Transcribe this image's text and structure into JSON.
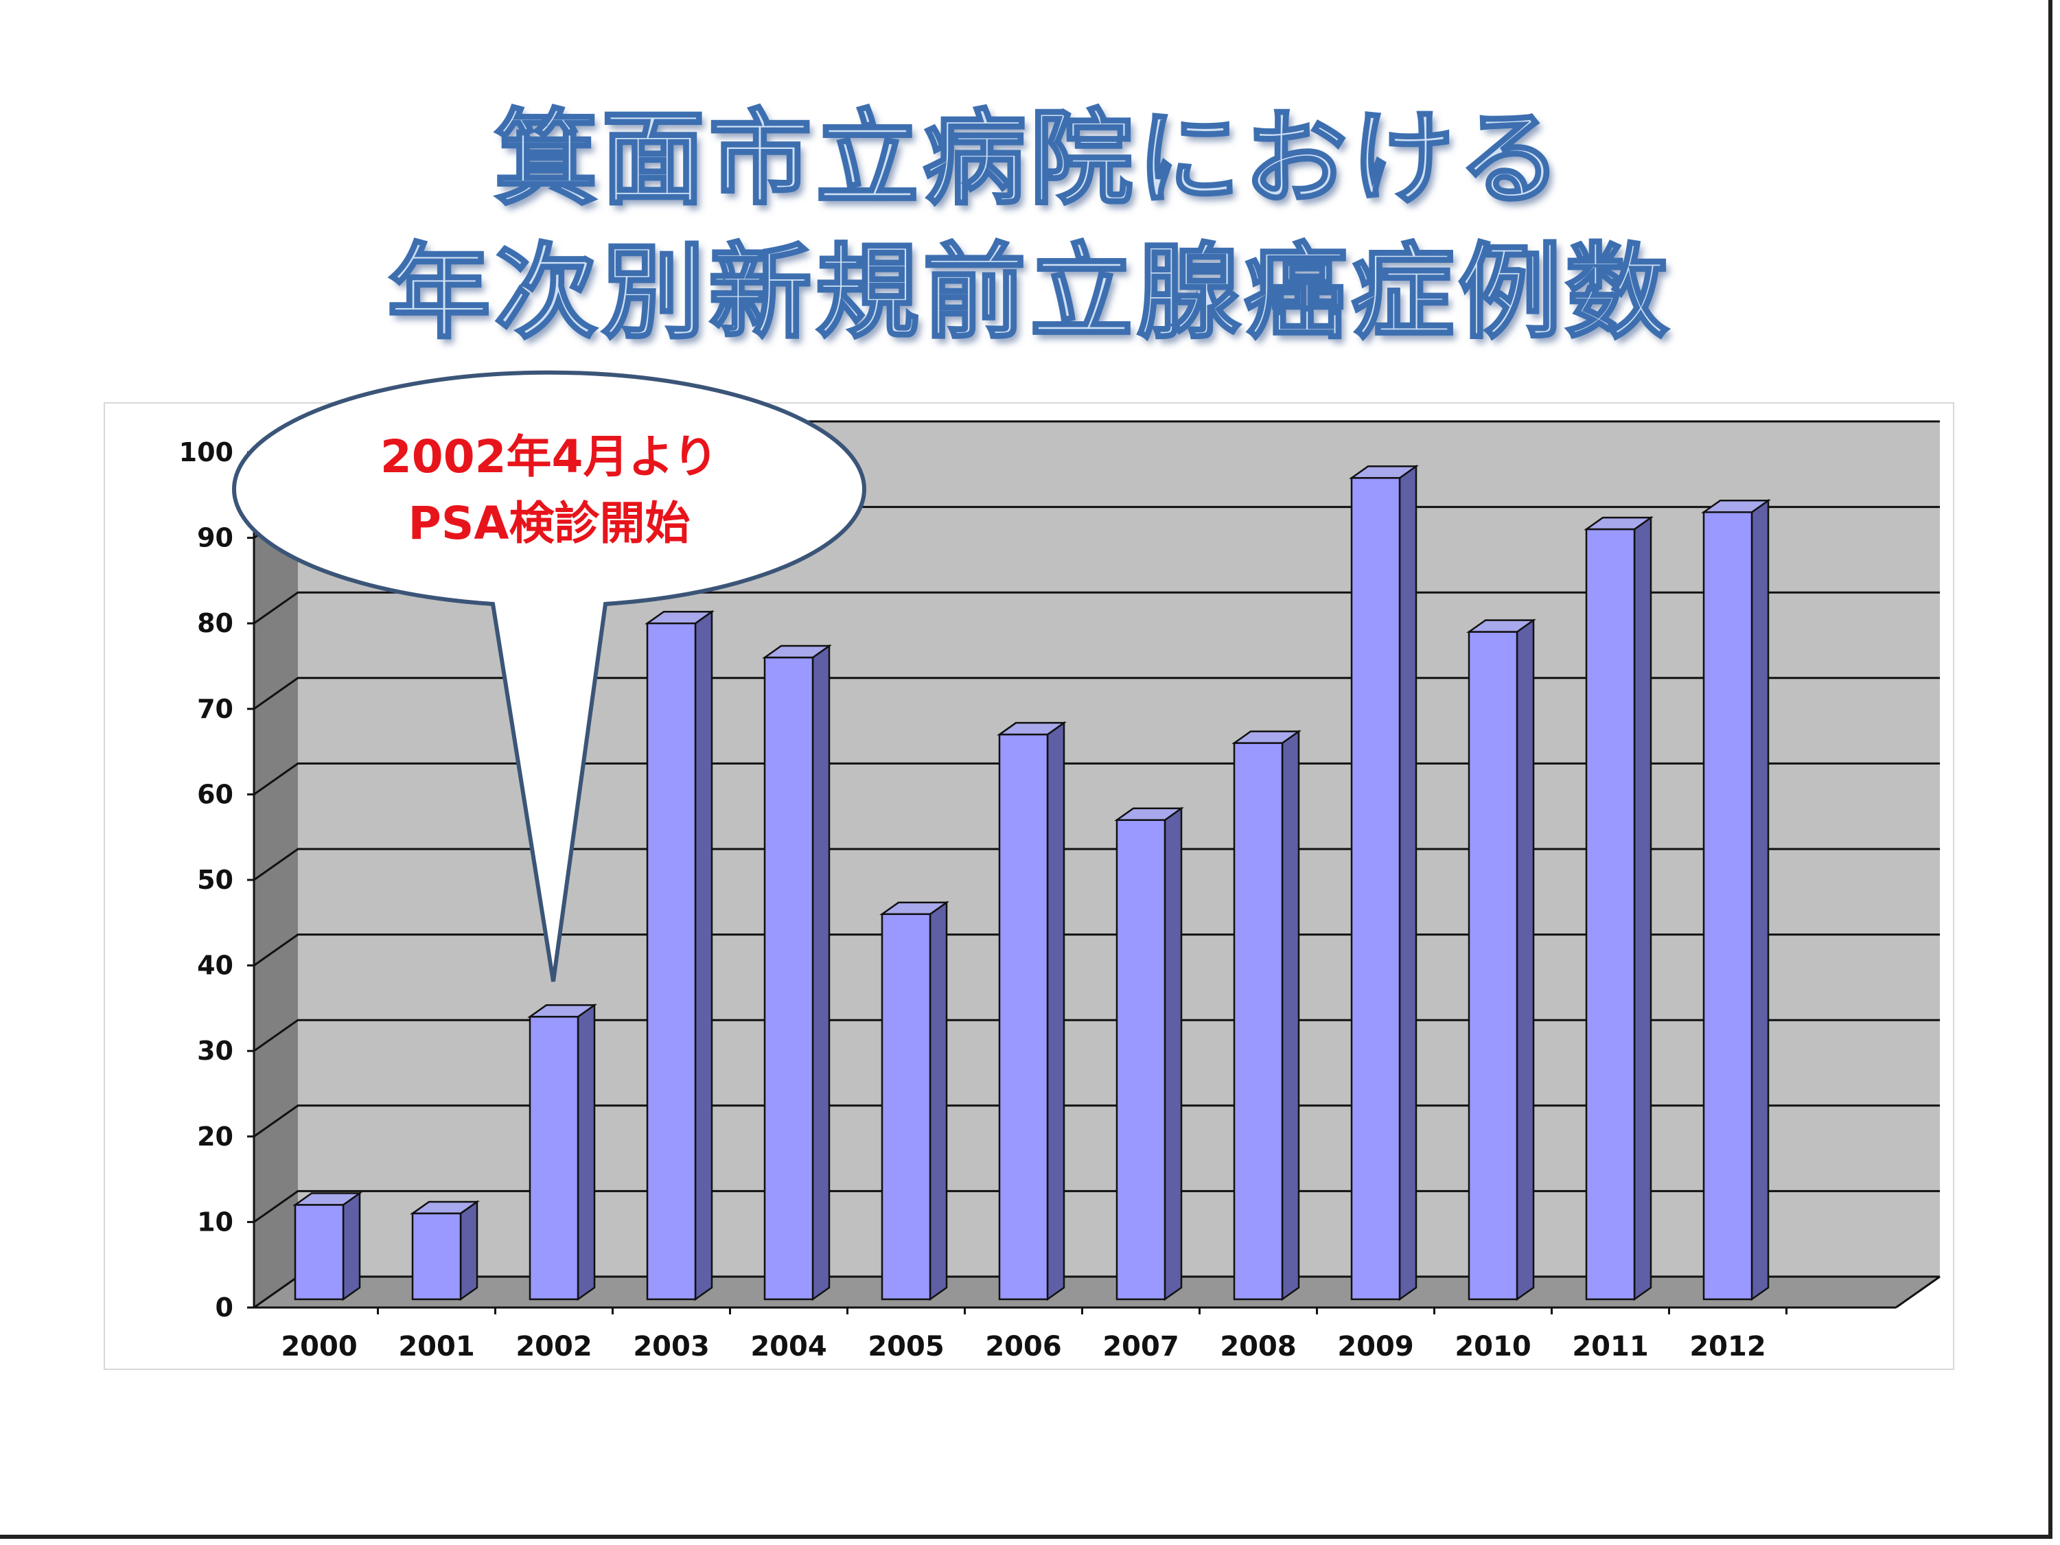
{
  "title_lines": [
    "箕面市立病院における",
    "年次別新規前立腺癌症例数"
  ],
  "callout": {
    "lines": [
      "2002年4月より",
      "PSA検診開始"
    ],
    "points_to": "2002"
  },
  "colors": {
    "bar_front": "#9999ff",
    "bar_top": "#a8a8ec",
    "bar_side": "#5f5fa6",
    "wall": "#c0c0c0",
    "wall_side": "#808080",
    "floor": "#969696",
    "title_fill": "#cfe0f5",
    "title_stroke": "#3d6fb0",
    "callout_text": "#e8141b"
  },
  "chart_data": {
    "type": "bar",
    "style": "3d-column",
    "categories": [
      "2000",
      "2001",
      "2002",
      "2003",
      "2004",
      "2005",
      "2006",
      "2007",
      "2008",
      "2009",
      "2010",
      "2011",
      "2012"
    ],
    "values": [
      12,
      11,
      34,
      80,
      76,
      46,
      67,
      57,
      66,
      97,
      79,
      91,
      93
    ],
    "ylim": [
      0,
      100
    ],
    "yticks": [
      0,
      10,
      20,
      30,
      40,
      50,
      60,
      70,
      80,
      90,
      100
    ],
    "grid": true,
    "legend": "none"
  }
}
